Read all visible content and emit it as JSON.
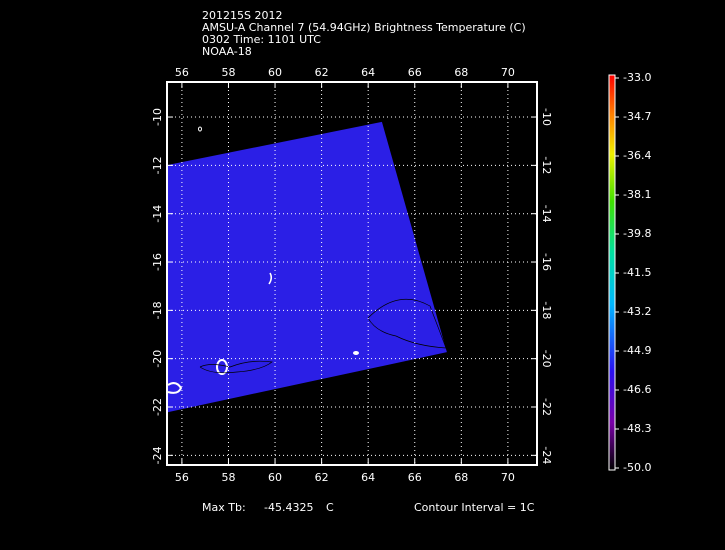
{
  "map": {
    "header": [
      "201215S 2012",
      "AMSU-A Channel 7 (54.94GHz) Brightness Temperature (C)",
      "0302 Time: 1101 UTC",
      "NOAA-18"
    ],
    "xlim": [
      55.36,
      71.25
    ],
    "ylim": [
      -8.55,
      -24.4
    ],
    "xticks": [
      56,
      58,
      60,
      62,
      64,
      66,
      68,
      70
    ],
    "yticks": [
      -10,
      -12,
      -14,
      -16,
      -18,
      -20,
      -22,
      -24
    ],
    "grid": true,
    "swath": {
      "color": "#2b1fe6",
      "lon": [
        55.36,
        64.59,
        67.38,
        55.36
      ],
      "lat": [
        -11.99,
        -10.2,
        -19.73,
        -22.22
      ]
    },
    "colorbar": {
      "lim": [
        -50,
        -33
      ],
      "ticks": [
        {
          "value": -33,
          "label": "-33.0"
        },
        -34.7,
        -36.4,
        -38.1,
        -39.8,
        -41.5,
        -43.2,
        -44.9,
        -46.6,
        -48.3,
        {
          "value": -50,
          "label": "-50.0"
        }
      ]
    },
    "footer": {
      "max_label": "Max Tb:",
      "max_value": -45.4325,
      "max_unit": "C",
      "contour": "Contour Interval = 1C"
    }
  }
}
